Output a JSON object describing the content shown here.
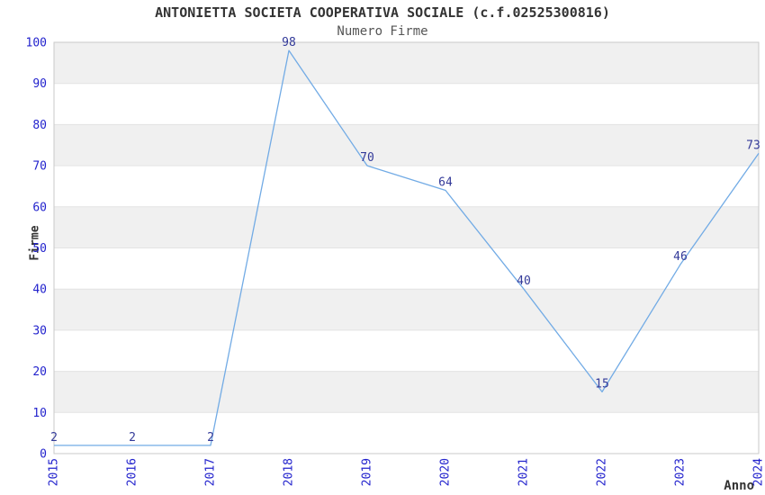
{
  "chart_data": {
    "type": "line",
    "title": "ANTONIETTA SOCIETA COOPERATIVA SOCIALE (c.f.02525300816)",
    "subtitle": "Numero Firme",
    "xlabel": "Anno",
    "ylabel": "Firme",
    "x": [
      "2015",
      "2016",
      "2017",
      "2018",
      "2019",
      "2020",
      "2021",
      "2022",
      "2023",
      "2024"
    ],
    "series": [
      {
        "name": "Numero Firme",
        "values": [
          2,
          2,
          2,
          98,
          70,
          64,
          40,
          15,
          46,
          73
        ]
      }
    ],
    "ylim": [
      0,
      100
    ],
    "ytick_step": 10,
    "grid": "horizontal-bands",
    "legend": "none",
    "data_labels_visible": true,
    "colors": {
      "line": "#72abe5",
      "tick_label": "#2323cd",
      "data_label": "#333a99",
      "band_fill": "#f0f0f0",
      "grid_line": "#e3e3e3",
      "plot_border": "#c9c9c9",
      "title": "#333333",
      "subtitle": "#555555",
      "axis_label": "#333333",
      "background": "#ffffff"
    }
  }
}
